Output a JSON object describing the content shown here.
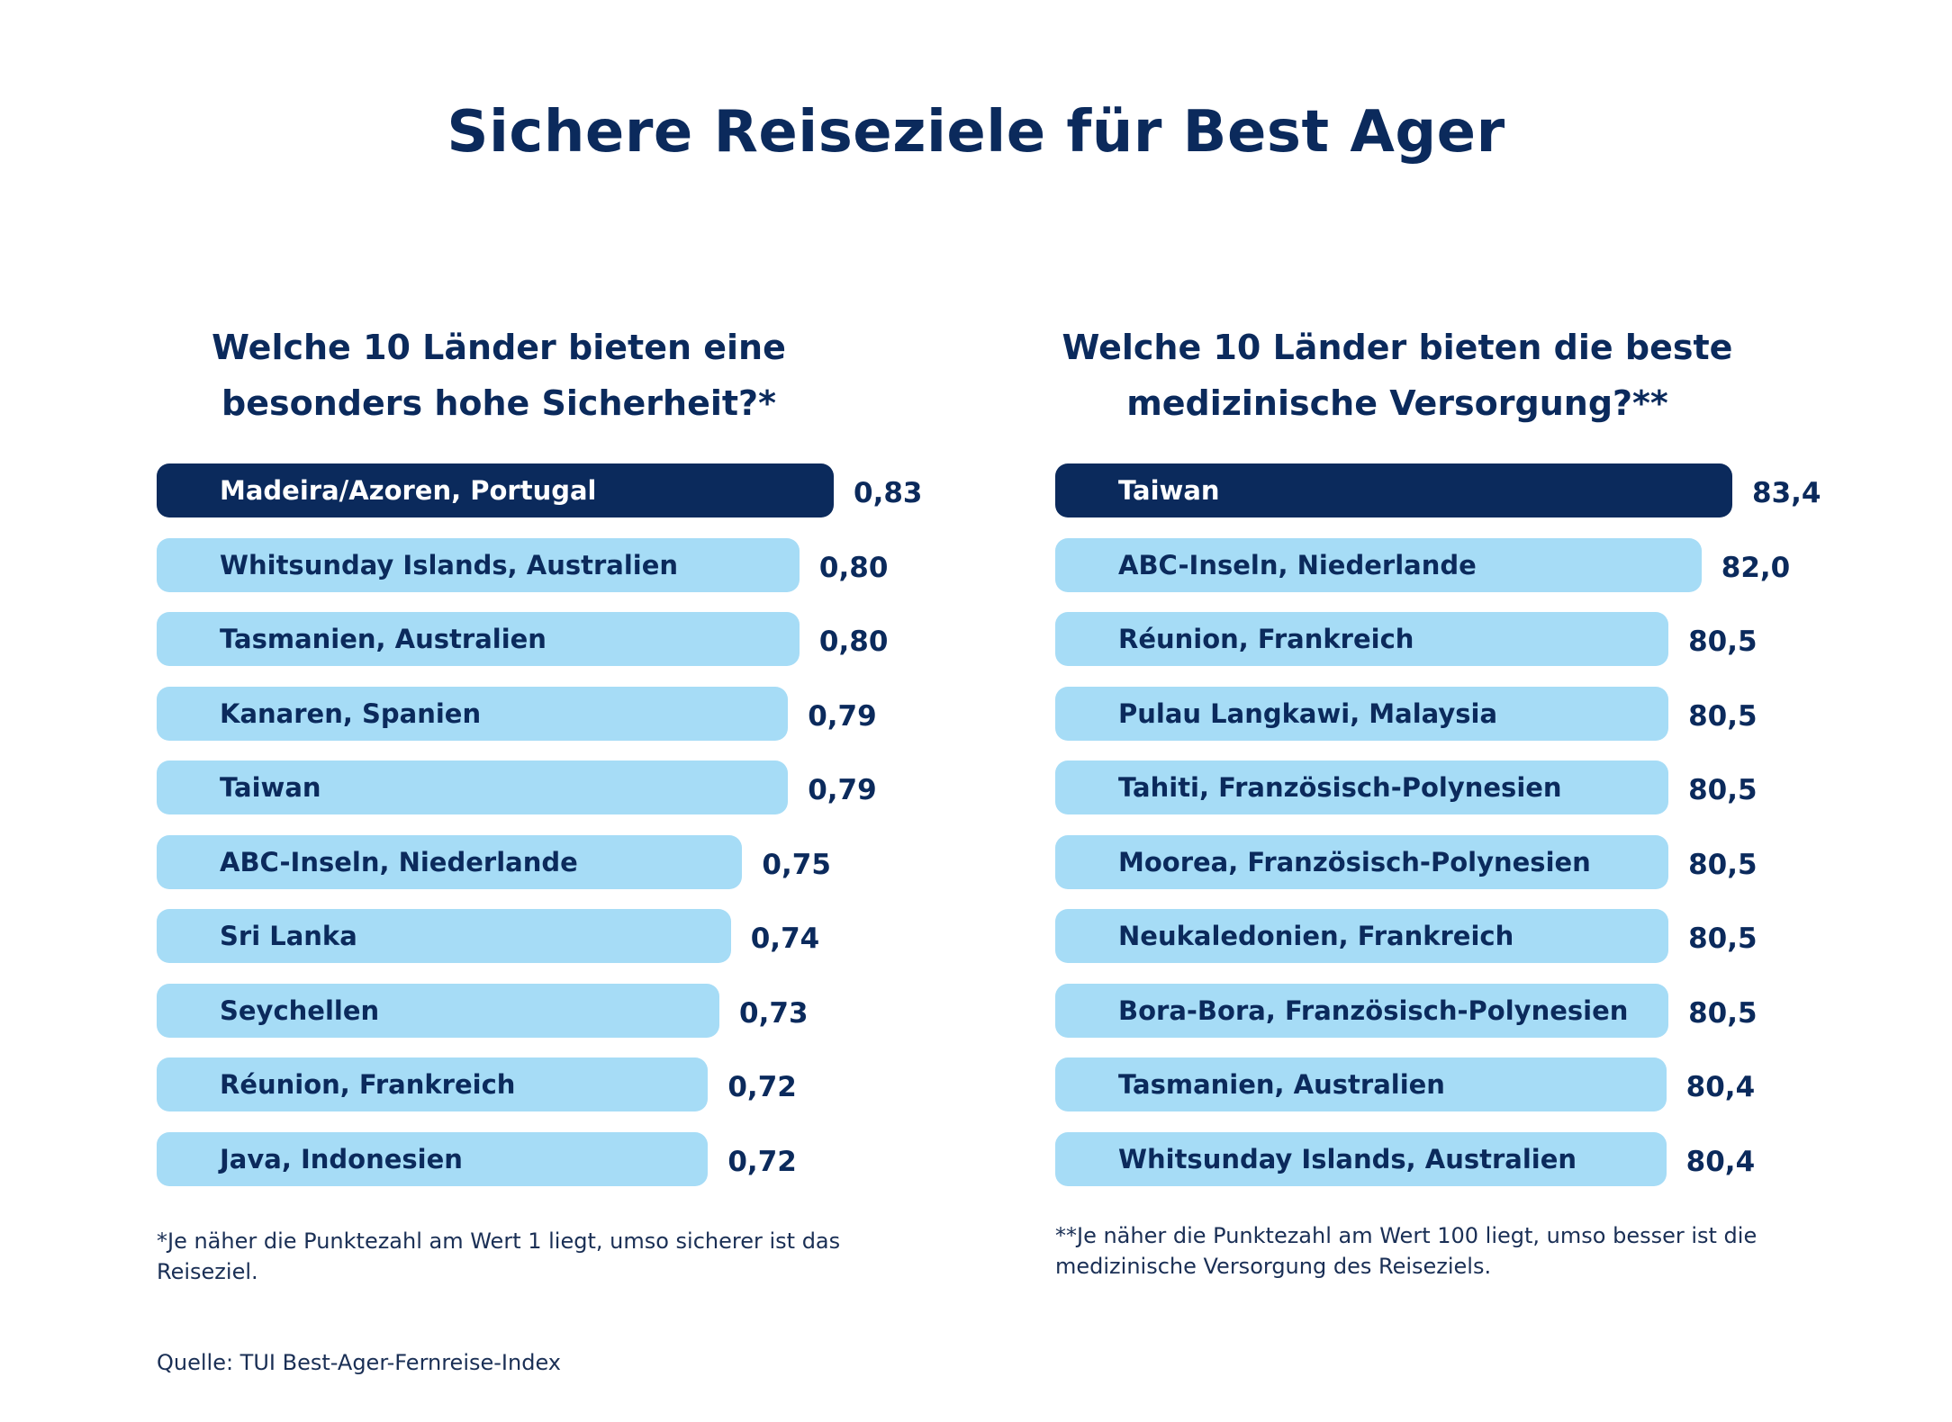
{
  "title": "Sichere Reiseziele für Best Ager",
  "chart_data": [
    {
      "type": "bar",
      "orientation": "horizontal",
      "title": "Welche 10 Länder bieten eine besonders hohe Sicherheit?*",
      "categories": [
        "Madeira/Azoren, Portugal",
        "Whitsunday Islands, Australien",
        "Tasmanien, Australien",
        "Kanaren, Spanien",
        "Taiwan",
        "ABC-Inseln, Niederlande",
        "Sri Lanka",
        "Seychellen",
        "Réunion, Frankreich",
        "Java, Indonesien"
      ],
      "values": [
        0.83,
        0.8,
        0.8,
        0.79,
        0.79,
        0.75,
        0.74,
        0.73,
        0.72,
        0.72
      ],
      "value_labels": [
        "0,83",
        "0,80",
        "0,80",
        "0,79",
        "0,79",
        "0,75",
        "0,74",
        "0,73",
        "0,72",
        "0,72"
      ],
      "highlight_index": 0,
      "footnote": "*Je näher die Punktezahl am Wert 1 liegt, umso sicherer ist das Reiseziel."
    },
    {
      "type": "bar",
      "orientation": "horizontal",
      "title": "Welche 10 Länder bieten die beste medizinische Versorgung?**",
      "categories": [
        "Taiwan",
        "ABC-Inseln, Niederlande",
        "Réunion, Frankreich",
        "Pulau Langkawi, Malaysia",
        "Tahiti, Französisch-Polynesien",
        "Moorea, Französisch-Polynesien",
        "Neukaledonien, Frankreich",
        "Bora-Bora, Französisch-Polynesien",
        "Tasmanien, Australien",
        "Whitsunday Islands, Australien"
      ],
      "values": [
        83.4,
        82.0,
        80.5,
        80.5,
        80.5,
        80.5,
        80.5,
        80.5,
        80.4,
        80.4
      ],
      "value_labels": [
        "83,4",
        "82,0",
        "80,5",
        "80,5",
        "80,5",
        "80,5",
        "80,5",
        "80,5",
        "80,4",
        "80,4"
      ],
      "highlight_index": 0,
      "footnote": "**Je näher die Punktezahl am Wert 100 liegt, umso besser ist die medizinische Versorgung des Reiseziels."
    }
  ],
  "colors": {
    "highlight": "#0b2a5c",
    "bar": "#a6dcf6",
    "text": "#0b2a5c"
  },
  "source": "Quelle: TUI Best-Ager-Fernreise-Index"
}
